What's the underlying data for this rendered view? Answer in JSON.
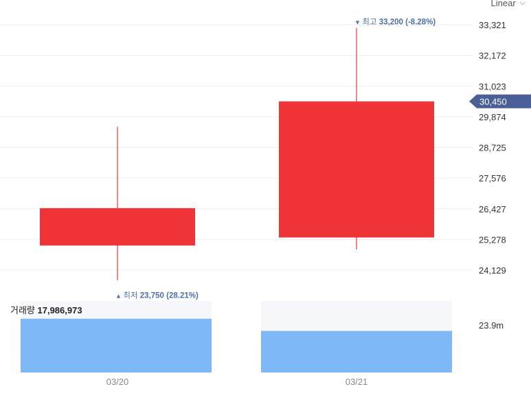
{
  "scale_selector": {
    "label": "Linear",
    "icon": "chevron-down-icon"
  },
  "chart_data": {
    "type": "candlestick",
    "categories": [
      "03/20",
      "03/21"
    ],
    "candles": [
      {
        "date": "03/20",
        "open": 26450,
        "close": 25050,
        "high": 29500,
        "low": 23750,
        "color": "#ef3438"
      },
      {
        "date": "03/21",
        "open": 30450,
        "close": 25350,
        "high": 33200,
        "low": 24900,
        "color": "#ef3438"
      }
    ],
    "y_ticks": [
      24129,
      25278,
      26427,
      27576,
      28725,
      29874,
      31023,
      32172,
      33321
    ],
    "y_tick_labels": [
      "24,129",
      "25,278",
      "26,427",
      "27,576",
      "28,725",
      "29,874",
      "31,023",
      "32,172",
      "33,321"
    ],
    "ylim": [
      23500,
      33700
    ],
    "grid": true,
    "current_price": {
      "value": 30450,
      "label": "30,450",
      "color": "#4a5e98"
    },
    "high_annotation": {
      "prefix": "▼",
      "label": "최고",
      "value_text": "33,200 (-8.28%)",
      "value": 33200
    },
    "low_annotation": {
      "prefix": "▲",
      "label": "최저",
      "value_text": "23,750 (28.21%)",
      "value": 23750
    },
    "volume": {
      "label": "거래량",
      "value_text": "17,986,973",
      "values": [
        17986973,
        13900000
      ],
      "max": 23900000,
      "max_label": "23.9m",
      "color": "#7fb8f7"
    },
    "colors": {
      "up": "#ef3438",
      "grid": "#eeeeee",
      "volume_bg": "#f6f7fb"
    }
  }
}
